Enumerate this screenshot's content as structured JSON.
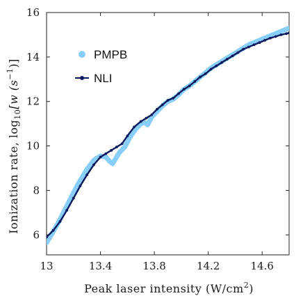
{
  "chart_data": {
    "type": "line",
    "title": "",
    "xlabel": "Peak laser intensity (W/cm",
    "xlabel_sup": "2",
    "xlabel_close": ")",
    "ylabel": "Ionization rate, log",
    "ylabel_sub": "10",
    "ylabel_tail": "[w  (s",
    "ylabel_sup": "−1",
    "ylabel_end": ")]",
    "xlim": [
      13.0,
      14.8
    ],
    "ylim": [
      5.1,
      16.0
    ],
    "xticks": [
      13.0,
      13.4,
      13.8,
      14.2,
      14.6
    ],
    "xtick_labels": [
      "13",
      "13.4",
      "13.8",
      "14.2",
      "14.6"
    ],
    "yticks": [
      6,
      8,
      10,
      12,
      14,
      16
    ],
    "ytick_labels": [
      "6",
      "8",
      "10",
      "12",
      "14",
      "16"
    ],
    "grid": false,
    "legend_position": "upper-left",
    "series": [
      {
        "name": "PMPB",
        "color": "#87cefa",
        "style": "thick-light",
        "x": [
          13.0,
          13.05,
          13.1,
          13.15,
          13.2,
          13.25,
          13.3,
          13.35,
          13.4,
          13.44,
          13.47,
          13.49,
          13.51,
          13.54,
          13.58,
          13.62,
          13.66,
          13.7,
          13.73,
          13.75,
          13.78,
          13.82,
          13.86,
          13.9,
          13.94,
          13.98,
          14.02,
          14.06,
          14.1,
          14.14,
          14.18,
          14.22,
          14.26,
          14.3,
          14.34,
          14.38,
          14.42,
          14.46,
          14.5,
          14.54,
          14.58,
          14.62,
          14.66,
          14.7,
          14.74,
          14.78,
          14.8
        ],
        "y": [
          5.65,
          6.15,
          6.7,
          7.3,
          7.9,
          8.45,
          8.95,
          9.35,
          9.55,
          9.5,
          9.3,
          9.2,
          9.4,
          9.7,
          9.95,
          10.4,
          10.75,
          11.0,
          11.05,
          10.95,
          11.3,
          11.55,
          11.8,
          12.0,
          12.1,
          12.3,
          12.55,
          12.7,
          12.9,
          13.1,
          13.3,
          13.5,
          13.65,
          13.8,
          13.95,
          14.1,
          14.25,
          14.4,
          14.55,
          14.65,
          14.75,
          14.85,
          14.95,
          15.05,
          15.15,
          15.25,
          15.3
        ]
      },
      {
        "name": "NLI",
        "color": "#0b1a5c",
        "style": "dotted-dark",
        "x": [
          13.0,
          13.05,
          13.1,
          13.15,
          13.2,
          13.25,
          13.3,
          13.35,
          13.4,
          13.44,
          13.48,
          13.52,
          13.56,
          13.6,
          13.65,
          13.7,
          13.74,
          13.78,
          13.82,
          13.86,
          13.9,
          13.94,
          13.98,
          14.02,
          14.06,
          14.1,
          14.14,
          14.18,
          14.22,
          14.26,
          14.3,
          14.34,
          14.38,
          14.42,
          14.46,
          14.5,
          14.54,
          14.58,
          14.62,
          14.66,
          14.7,
          14.74,
          14.78,
          14.8
        ],
        "y": [
          5.9,
          6.2,
          6.6,
          7.1,
          7.65,
          8.2,
          8.7,
          9.15,
          9.5,
          9.65,
          9.8,
          9.95,
          10.1,
          10.45,
          10.85,
          11.1,
          11.25,
          11.4,
          11.65,
          11.85,
          12.05,
          12.15,
          12.35,
          12.55,
          12.7,
          12.9,
          13.1,
          13.25,
          13.45,
          13.6,
          13.75,
          13.9,
          14.05,
          14.2,
          14.35,
          14.45,
          14.55,
          14.65,
          14.75,
          14.85,
          14.92,
          15.0,
          15.05,
          15.08
        ]
      }
    ]
  }
}
